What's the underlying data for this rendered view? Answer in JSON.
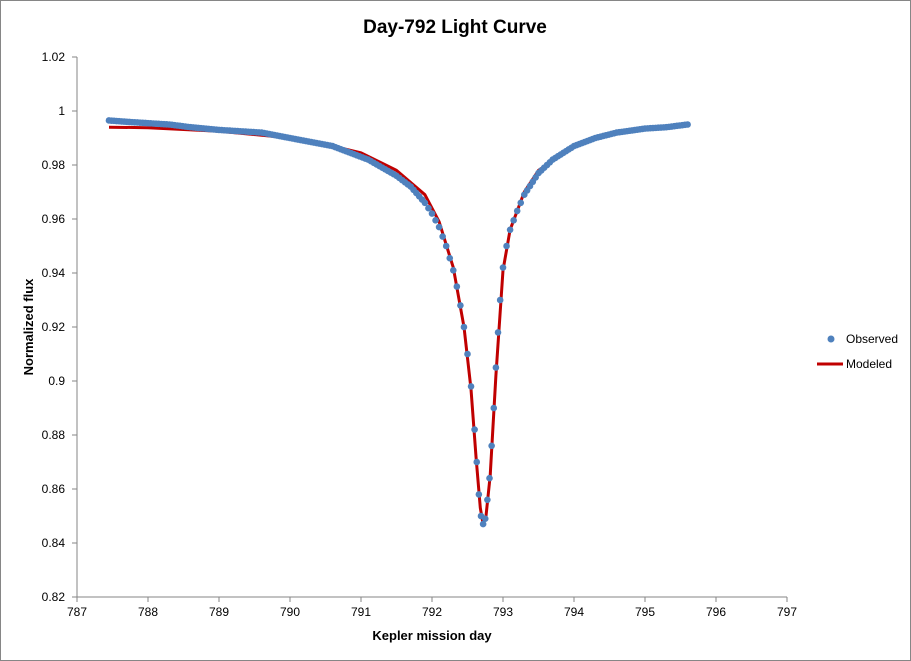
{
  "chart_data": {
    "type": "scatter",
    "title": "Day-792 Light Curve",
    "xlabel": "Kepler mission day",
    "ylabel": "Normalized flux",
    "xlim": [
      787,
      797
    ],
    "ylim": [
      0.82,
      1.02
    ],
    "xticks": [
      "787",
      "788",
      "789",
      "790",
      "791",
      "792",
      "793",
      "794",
      "795",
      "796",
      "797"
    ],
    "yticks": [
      "0.82",
      "0.84",
      "0.86",
      "0.88",
      "0.9",
      "0.92",
      "0.94",
      "0.96",
      "0.98",
      "1",
      "1.02"
    ],
    "grid": false,
    "legend_position": "right",
    "series": [
      {
        "name": "Observed",
        "style": "markers",
        "color": "#4f81bd",
        "x": [
          787.45,
          787.7,
          788,
          788.3,
          788.6,
          789,
          789.3,
          789.6,
          790,
          790.3,
          790.6,
          790.9,
          791.1,
          791.3,
          791.5,
          791.7,
          791.9,
          792.0,
          792.1,
          792.2,
          792.3,
          792.35,
          792.4,
          792.45,
          792.5,
          792.55,
          792.6,
          792.63,
          792.66,
          792.69,
          792.72,
          792.75,
          792.78,
          792.81,
          792.84,
          792.87,
          792.9,
          792.93,
          792.96,
          793.0,
          793.05,
          793.1,
          793.2,
          793.3,
          793.5,
          793.7,
          794,
          794.3,
          794.6,
          795,
          795.3,
          795.6
        ],
        "y": [
          0.9965,
          0.996,
          0.9955,
          0.995,
          0.994,
          0.993,
          0.9925,
          0.992,
          0.99,
          0.9885,
          0.987,
          0.984,
          0.982,
          0.979,
          0.976,
          0.972,
          0.966,
          0.962,
          0.957,
          0.95,
          0.941,
          0.935,
          0.928,
          0.92,
          0.91,
          0.898,
          0.882,
          0.87,
          0.858,
          0.85,
          0.847,
          0.849,
          0.856,
          0.864,
          0.876,
          0.89,
          0.905,
          0.918,
          0.93,
          0.942,
          0.95,
          0.956,
          0.963,
          0.969,
          0.977,
          0.982,
          0.987,
          0.99,
          0.992,
          0.9935,
          0.994,
          0.995
        ]
      },
      {
        "name": "Modeled",
        "style": "line",
        "color": "#c00000",
        "x": [
          787.45,
          788,
          789,
          790,
          790.6,
          791,
          791.5,
          791.9,
          792.1,
          792.3,
          792.45,
          792.55,
          792.62,
          792.68,
          792.72,
          792.76,
          792.82,
          792.9,
          793.0,
          793.1,
          793.3,
          793.5,
          794,
          794.6,
          795,
          795.6
        ],
        "y": [
          0.994,
          0.9938,
          0.9925,
          0.99,
          0.987,
          0.9845,
          0.978,
          0.969,
          0.959,
          0.942,
          0.92,
          0.897,
          0.872,
          0.853,
          0.847,
          0.85,
          0.865,
          0.902,
          0.941,
          0.956,
          0.97,
          0.978,
          0.987,
          0.992,
          0.9935,
          0.995
        ]
      }
    ]
  }
}
